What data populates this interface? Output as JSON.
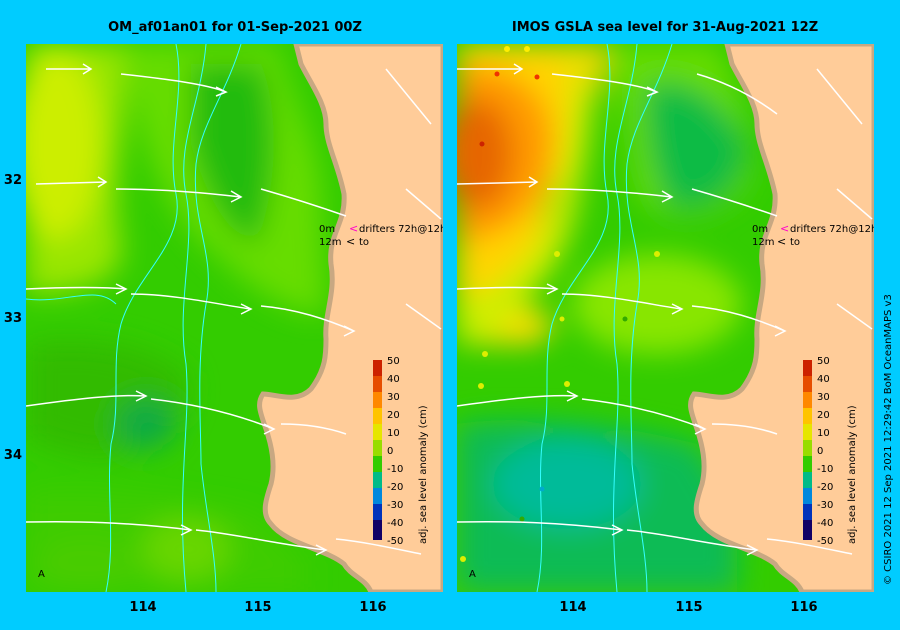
{
  "panels": {
    "left": {
      "title": "OM_af01an01 for 01-Sep-2021 00Z"
    },
    "right": {
      "title": "IMOS GSLA sea level  for 31-Aug-2021 12Z"
    }
  },
  "axes": {
    "lat_labels": [
      "32",
      "33",
      "34"
    ],
    "lon_labels": [
      "114",
      "115",
      "116"
    ]
  },
  "drifter_legend": {
    "line1_depth": "0m",
    "line1_text": "drifters 72h@12h",
    "line2_depth": "12m",
    "line2_text": "to"
  },
  "colorbar": {
    "label": "adj. sea level anomaly (cm)",
    "ticks": [
      "50",
      "40",
      "30",
      "20",
      "10",
      "0",
      "-10",
      "-20",
      "-30",
      "-40",
      "-50"
    ]
  },
  "north_marker": "A",
  "credit": "© CSIRO 2021   12 Sep 2021 12:29:42 BoM OceanMAPS v3",
  "colors": {
    "background": "#00ccff",
    "land": "#ffcc99",
    "coast": "#c8a882",
    "contour": "#33ffff",
    "vectors": "#ffffff"
  }
}
